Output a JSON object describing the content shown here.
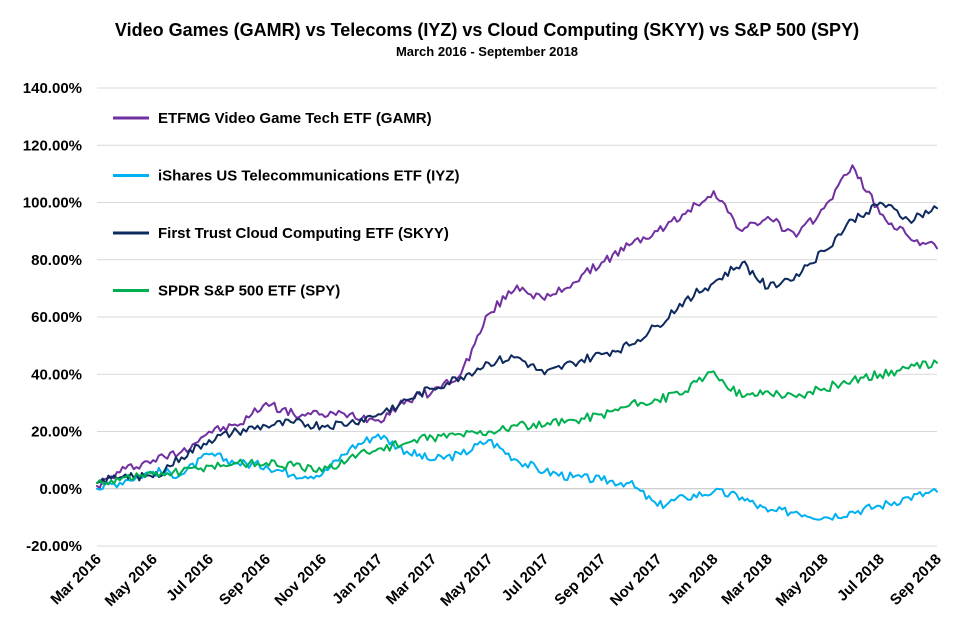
{
  "chart_data": {
    "type": "line",
    "title": "Video Games (GAMR) vs Telecoms (IYZ) vs Cloud Computing (SKYY) vs S&P 500 (SPY)",
    "subtitle": "March 2016 - September 2018",
    "xlabel": "",
    "ylabel": "",
    "ylim": [
      -20,
      140
    ],
    "y_ticks": [
      -20,
      0,
      20,
      40,
      60,
      80,
      100,
      120,
      140
    ],
    "y_tick_labels": [
      "-20.00%",
      "0.00%",
      "20.00%",
      "40.00%",
      "60.00%",
      "80.00%",
      "100.00%",
      "120.00%",
      "140.00%"
    ],
    "grid": true,
    "legend_position": "top-left",
    "x": [
      "2016-03-01",
      "2016-04-01",
      "2016-05-01",
      "2016-06-01",
      "2016-07-01",
      "2016-08-01",
      "2016-09-01",
      "2016-10-01",
      "2016-11-01",
      "2016-12-01",
      "2017-01-01",
      "2017-02-01",
      "2017-03-01",
      "2017-04-01",
      "2017-05-01",
      "2017-06-01",
      "2017-07-01",
      "2017-08-01",
      "2017-09-01",
      "2017-10-01",
      "2017-11-01",
      "2017-12-01",
      "2018-01-01",
      "2018-02-01",
      "2018-03-01",
      "2018-04-01",
      "2018-05-01",
      "2018-06-01",
      "2018-07-01",
      "2018-08-01",
      "2018-09-01"
    ],
    "x_tick_labels": [
      "Mar 2016",
      "May 2016",
      "Jul 2016",
      "Sep 2016",
      "Nov 2016",
      "Jan 2017",
      "Mar 2017",
      "May 2017",
      "Jul 2017",
      "Sep 2017",
      "Nov 2017",
      "Jan 2018",
      "Mar 2018",
      "May 2018",
      "Jul 2018",
      "Sep 2018"
    ],
    "series": [
      {
        "name": "ETFMG Video Game Tech ETF (GAMR)",
        "color": "#7030a0",
        "values": [
          1,
          7,
          10,
          13,
          20,
          22,
          30,
          26,
          26,
          26,
          24,
          31,
          34,
          40,
          61,
          71,
          66,
          72,
          79,
          85,
          90,
          96,
          104,
          90,
          95,
          88,
          98,
          113,
          96,
          88,
          84
        ]
      },
      {
        "name": "iShares US Telecommunications ETF (IYZ)",
        "color": "#00b0f0",
        "values": [
          0,
          3,
          6,
          5,
          12,
          9,
          8,
          5,
          5,
          14,
          19,
          13,
          10,
          12,
          17,
          10,
          6,
          4,
          3,
          2,
          -6,
          -3,
          -1,
          -3,
          -8,
          -8,
          -10,
          -8,
          -6,
          -3,
          -1
        ]
      },
      {
        "name": "First Trust Cloud Computing ETF (SKYY)",
        "color": "#0e2a5e",
        "values": [
          2,
          5,
          4,
          11,
          17,
          20,
          22,
          23,
          22,
          23,
          26,
          31,
          35,
          39,
          44,
          46,
          40,
          44,
          47,
          50,
          57,
          66,
          72,
          79,
          70,
          75,
          83,
          94,
          100,
          94,
          98
        ]
      },
      {
        "name": "SPDR S&P 500 ETF (SPY)",
        "color": "#00b050",
        "values": [
          2,
          4,
          5,
          6,
          8,
          9,
          9,
          8,
          6,
          11,
          14,
          16,
          18,
          19,
          20,
          22,
          22,
          24,
          26,
          29,
          31,
          34,
          41,
          32,
          34,
          32,
          35,
          38,
          40,
          42,
          44
        ]
      }
    ]
  }
}
